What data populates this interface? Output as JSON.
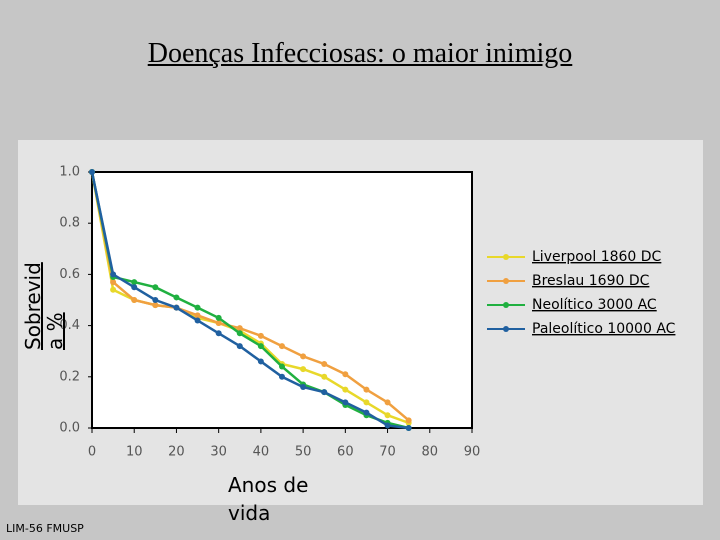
{
  "chart_data": {
    "type": "line",
    "title": "Doenças Infecciosas: o maior inimigo",
    "x_label": "Anos de vida",
    "y_label": "Sobrevida %",
    "footer": "LIM-56 FMUSP",
    "x": [
      0,
      5,
      10,
      15,
      20,
      25,
      30,
      35,
      40,
      45,
      50,
      55,
      60,
      65,
      70,
      75
    ],
    "series": [
      {
        "name": "Liverpool 1860 DC",
        "color": "#e8d82a",
        "values": [
          1.0,
          0.54,
          0.5,
          0.48,
          0.47,
          0.43,
          0.41,
          0.38,
          0.33,
          0.25,
          0.23,
          0.2,
          0.15,
          0.1,
          0.05,
          0.02
        ]
      },
      {
        "name": "Breslau 1690 DC",
        "color": "#f0a040",
        "values": [
          1.0,
          0.57,
          0.5,
          0.48,
          0.47,
          0.44,
          0.41,
          0.39,
          0.36,
          0.32,
          0.28,
          0.25,
          0.21,
          0.15,
          0.1,
          0.03
        ]
      },
      {
        "name": "Neolítico 3000 AC",
        "color": "#20b040",
        "values": [
          1.0,
          0.59,
          0.57,
          0.55,
          0.51,
          0.47,
          0.43,
          0.37,
          0.32,
          0.24,
          0.17,
          0.14,
          0.09,
          0.05,
          0.02,
          0.0
        ]
      },
      {
        "name": "Paleolítico 10000 AC",
        "color": "#2060a0",
        "values": [
          1.0,
          0.6,
          0.55,
          0.5,
          0.47,
          0.42,
          0.37,
          0.32,
          0.26,
          0.2,
          0.16,
          0.14,
          0.1,
          0.06,
          0.01,
          0.0
        ]
      }
    ],
    "xlim": [
      0,
      90
    ],
    "xticks": [
      0,
      10,
      20,
      30,
      40,
      50,
      60,
      70,
      80,
      90
    ],
    "ylim": [
      0,
      1
    ],
    "yticks": [
      {
        "value": 0,
        "label": "0.0"
      },
      {
        "value": 0.2,
        "label": "0.2"
      },
      {
        "value": 0.4,
        "label": "0.4"
      },
      {
        "value": 0.6,
        "label": "0.6"
      },
      {
        "value": 0.8,
        "label": "0.8"
      },
      {
        "value": 1,
        "label": "1.0"
      }
    ],
    "legend": "right"
  }
}
